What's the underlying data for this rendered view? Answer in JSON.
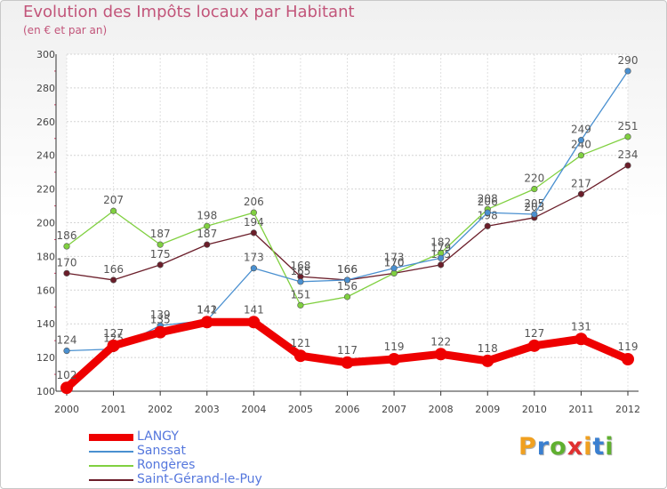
{
  "title": "Evolution des Impôts locaux par Habitant",
  "subtitle": "(en € et par an)",
  "logo": {
    "text": "Proxiti",
    "colors": [
      "#f0a020",
      "#3a7fd0",
      "#60b030",
      "#e03030",
      "#f0a020",
      "#3a7fd0",
      "#60b030"
    ]
  },
  "chart_data": {
    "type": "line",
    "x": [
      "2000",
      "2001",
      "2002",
      "2003",
      "2004",
      "2005",
      "2006",
      "2007",
      "2008",
      "2009",
      "2010",
      "2011",
      "2012"
    ],
    "ylim": [
      100,
      300
    ],
    "yticks": [
      100,
      120,
      140,
      160,
      180,
      200,
      220,
      240,
      260,
      280,
      300
    ],
    "grid": true,
    "legend_position": "bottom-left",
    "series": [
      {
        "name": "Saint-Gérand-le-Puy",
        "color": "#6b1e2a",
        "values": [
          170,
          166,
          175,
          187,
          194,
          168,
          166,
          170,
          175,
          198,
          203,
          217,
          234
        ]
      },
      {
        "name": "Rongères",
        "color": "#80d040",
        "values": [
          186,
          207,
          187,
          198,
          206,
          151,
          156,
          170,
          182,
          208,
          220,
          240,
          251
        ]
      },
      {
        "name": "Sanssat",
        "color": "#4a90d0",
        "values": [
          124,
          125,
          139,
          142,
          173,
          165,
          166,
          173,
          179,
          206,
          205,
          249,
          290
        ]
      },
      {
        "name": "LANGY",
        "color": "#ee0000",
        "values": [
          102,
          127,
          135,
          141,
          141,
          121,
          117,
          119,
          122,
          118,
          127,
          131,
          119
        ]
      }
    ],
    "legend_order": [
      "LANGY",
      "Sanssat",
      "Rongères",
      "Saint-Gérand-le-Puy"
    ]
  }
}
